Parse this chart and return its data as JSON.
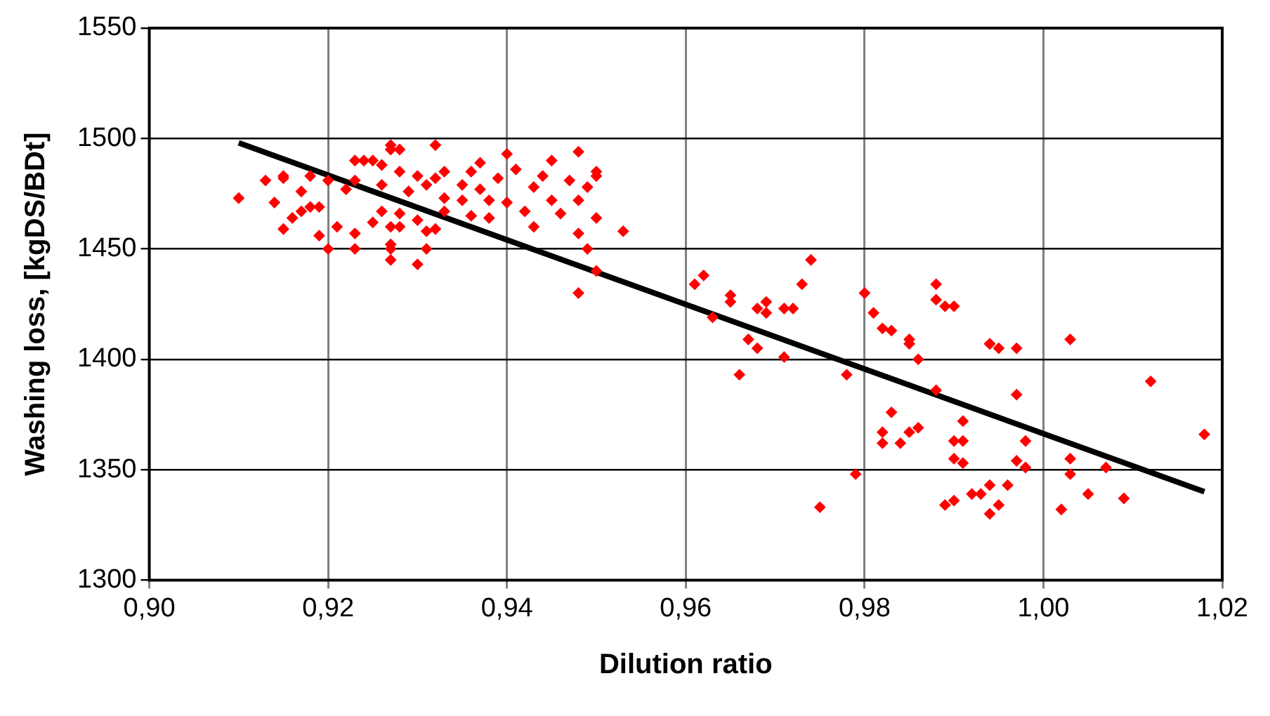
{
  "chart_data": {
    "type": "scatter",
    "xlabel": "Dilution ratio",
    "ylabel": "Washing loss, [kgDS/BDt]",
    "xlim": [
      0.9,
      1.02
    ],
    "xticks": [
      {
        "value": 0.9,
        "label": "0,90"
      },
      {
        "value": 0.92,
        "label": "0,92"
      },
      {
        "value": 0.94,
        "label": "0,94"
      },
      {
        "value": 0.96,
        "label": "0,96"
      },
      {
        "value": 0.98,
        "label": "0,98"
      },
      {
        "value": 1.0,
        "label": "1,00"
      },
      {
        "value": 1.02,
        "label": "1,02"
      }
    ],
    "ylim": [
      1300,
      1550
    ],
    "yticks": [
      1300,
      1350,
      1400,
      1450,
      1500,
      1550
    ],
    "grid": true,
    "legend": false,
    "series": [
      {
        "type": "scatter",
        "color": "#ff0000",
        "marker": "diamond",
        "x": [
          0.91,
          0.913,
          0.915,
          0.915,
          0.914,
          0.915,
          0.916,
          0.917,
          0.917,
          0.918,
          0.918,
          0.919,
          0.919,
          0.92,
          0.92,
          0.921,
          0.922,
          0.923,
          0.923,
          0.923,
          0.923,
          0.924,
          0.925,
          0.925,
          0.926,
          0.926,
          0.926,
          0.927,
          0.927,
          0.928,
          0.927,
          0.927,
          0.927,
          0.927,
          0.928,
          0.928,
          0.928,
          0.929,
          0.93,
          0.93,
          0.931,
          0.93,
          0.931,
          0.931,
          0.932,
          0.932,
          0.932,
          0.933,
          0.933,
          0.933,
          0.935,
          0.935,
          0.936,
          0.936,
          0.937,
          0.937,
          0.938,
          0.938,
          0.939,
          0.94,
          0.94,
          0.941,
          0.942,
          0.943,
          0.943,
          0.944,
          0.945,
          0.945,
          0.946,
          0.947,
          0.948,
          0.948,
          0.949,
          0.95,
          0.95,
          0.948,
          0.948,
          0.949,
          0.95,
          0.95,
          0.953,
          0.962,
          0.961,
          0.974,
          0.963,
          0.965,
          0.965,
          0.969,
          0.968,
          0.969,
          0.971,
          0.972,
          0.973,
          0.967,
          0.968,
          0.971,
          0.966,
          0.978,
          0.98,
          0.981,
          0.982,
          0.983,
          0.985,
          0.985,
          0.986,
          0.988,
          0.988,
          0.989,
          0.99,
          0.988,
          0.983,
          0.982,
          0.982,
          0.984,
          0.985,
          0.986,
          0.99,
          0.99,
          0.979,
          0.975,
          0.989,
          0.99,
          0.994,
          0.994,
          0.995,
          0.997,
          1.003,
          1.012,
          1.018,
          0.997,
          0.991,
          0.991,
          0.991,
          0.997,
          0.998,
          0.998,
          1.003,
          1.003,
          1.007,
          0.992,
          0.993,
          0.994,
          0.996,
          0.995,
          0.994,
          1.005,
          1.009,
          1.002
        ],
        "values": [
          1473,
          1481,
          1483,
          1482,
          1471,
          1459,
          1464,
          1476,
          1467,
          1483,
          1469,
          1469,
          1456,
          1481,
          1450,
          1460,
          1477,
          1490,
          1450,
          1457,
          1481,
          1490,
          1490,
          1462,
          1467,
          1479,
          1488,
          1495,
          1497,
          1495,
          1450,
          1452,
          1445,
          1460,
          1460,
          1485,
          1466,
          1476,
          1483,
          1443,
          1479,
          1463,
          1458,
          1450,
          1497,
          1482,
          1459,
          1467,
          1485,
          1473,
          1472,
          1479,
          1485,
          1465,
          1489,
          1477,
          1472,
          1464,
          1482,
          1493,
          1471,
          1486,
          1467,
          1478,
          1460,
          1483,
          1472,
          1490,
          1466,
          1481,
          1457,
          1472,
          1478,
          1464,
          1485,
          1494,
          1430,
          1450,
          1440,
          1483,
          1458,
          1438,
          1434,
          1445,
          1419,
          1429,
          1426,
          1426,
          1423,
          1421,
          1423,
          1423,
          1434,
          1409,
          1405,
          1401,
          1393,
          1393,
          1430,
          1421,
          1414,
          1413,
          1407,
          1409,
          1400,
          1434,
          1427,
          1424,
          1424,
          1386,
          1376,
          1367,
          1362,
          1362,
          1367,
          1369,
          1363,
          1355,
          1348,
          1333,
          1334,
          1336,
          1407,
          1407,
          1405,
          1405,
          1409,
          1390,
          1366,
          1384,
          1372,
          1363,
          1353,
          1354,
          1351,
          1363,
          1355,
          1348,
          1351,
          1339,
          1339,
          1343,
          1343,
          1334,
          1330,
          1339,
          1337,
          1332
        ]
      },
      {
        "type": "line",
        "color": "#000000",
        "marker": "none",
        "x": [
          0.91,
          1.018
        ],
        "values": [
          1498,
          1340
        ]
      }
    ]
  }
}
